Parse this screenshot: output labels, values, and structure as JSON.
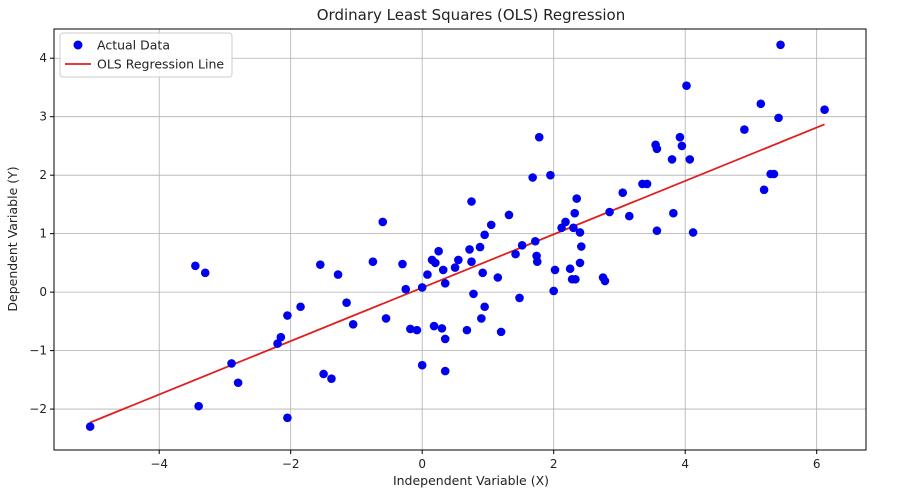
{
  "chart_data": {
    "type": "scatter",
    "title": "Ordinary Least Squares (OLS) Regression",
    "xlabel": "Independent Variable (X)",
    "ylabel": "Dependent Variable (Y)",
    "xlim": [
      -5.6,
      6.75
    ],
    "ylim": [
      -2.7,
      4.5
    ],
    "xticks": [
      -4,
      -2,
      0,
      2,
      4,
      6
    ],
    "yticks": [
      -2,
      -1,
      0,
      1,
      2,
      3,
      4
    ],
    "grid": true,
    "legend_position": "top-left",
    "colors": {
      "points": "#0000ee",
      "line": "#e02020",
      "grid": "#b0b0b0",
      "axes": "#000000"
    },
    "series": [
      {
        "name": "Actual Data",
        "kind": "scatter",
        "points": [
          [
            -5.05,
            -2.3
          ],
          [
            -3.45,
            0.45
          ],
          [
            -3.3,
            0.33
          ],
          [
            -3.4,
            -1.95
          ],
          [
            -2.9,
            -1.22
          ],
          [
            -2.8,
            -1.55
          ],
          [
            -2.2,
            -0.88
          ],
          [
            -2.15,
            -0.77
          ],
          [
            -2.05,
            -0.4
          ],
          [
            -2.05,
            -2.15
          ],
          [
            -1.85,
            -0.25
          ],
          [
            -1.55,
            0.47
          ],
          [
            -1.5,
            -1.4
          ],
          [
            -1.38,
            -1.48
          ],
          [
            -1.28,
            0.3
          ],
          [
            -1.15,
            -0.18
          ],
          [
            -1.05,
            -0.55
          ],
          [
            -0.75,
            0.52
          ],
          [
            -0.6,
            1.2
          ],
          [
            -0.55,
            -0.45
          ],
          [
            -0.3,
            0.48
          ],
          [
            -0.25,
            0.05
          ],
          [
            -0.18,
            -0.63
          ],
          [
            -0.08,
            -0.65
          ],
          [
            0.0,
            -1.25
          ],
          [
            0.0,
            0.08
          ],
          [
            0.08,
            0.3
          ],
          [
            0.15,
            0.55
          ],
          [
            0.18,
            -0.58
          ],
          [
            0.2,
            0.5
          ],
          [
            0.25,
            0.7
          ],
          [
            0.3,
            -0.62
          ],
          [
            0.32,
            0.38
          ],
          [
            0.35,
            0.15
          ],
          [
            0.35,
            -0.8
          ],
          [
            0.35,
            -1.35
          ],
          [
            0.5,
            0.42
          ],
          [
            0.55,
            0.55
          ],
          [
            0.68,
            -0.65
          ],
          [
            0.72,
            0.73
          ],
          [
            0.75,
            0.52
          ],
          [
            0.75,
            1.55
          ],
          [
            0.78,
            -0.03
          ],
          [
            0.88,
            0.77
          ],
          [
            0.9,
            -0.45
          ],
          [
            0.92,
            0.33
          ],
          [
            0.95,
            0.98
          ],
          [
            0.95,
            -0.25
          ],
          [
            1.05,
            1.15
          ],
          [
            1.15,
            0.25
          ],
          [
            1.2,
            -0.68
          ],
          [
            1.32,
            1.32
          ],
          [
            1.42,
            0.65
          ],
          [
            1.48,
            -0.1
          ],
          [
            1.52,
            0.8
          ],
          [
            1.68,
            1.96
          ],
          [
            1.72,
            0.87
          ],
          [
            1.74,
            0.62
          ],
          [
            1.75,
            0.52
          ],
          [
            1.78,
            2.65
          ],
          [
            1.95,
            2.0
          ],
          [
            2.0,
            0.02
          ],
          [
            2.02,
            0.38
          ],
          [
            2.12,
            1.1
          ],
          [
            2.18,
            1.2
          ],
          [
            2.25,
            0.4
          ],
          [
            2.28,
            0.22
          ],
          [
            2.3,
            1.1
          ],
          [
            2.32,
            1.35
          ],
          [
            2.33,
            0.22
          ],
          [
            2.35,
            1.6
          ],
          [
            2.4,
            1.02
          ],
          [
            2.4,
            0.5
          ],
          [
            2.42,
            0.78
          ],
          [
            2.75,
            0.25
          ],
          [
            2.78,
            0.19
          ],
          [
            2.85,
            1.37
          ],
          [
            3.05,
            1.7
          ],
          [
            3.15,
            1.3
          ],
          [
            3.35,
            1.85
          ],
          [
            3.42,
            1.85
          ],
          [
            3.55,
            2.52
          ],
          [
            3.57,
            2.45
          ],
          [
            3.57,
            1.05
          ],
          [
            3.8,
            2.27
          ],
          [
            3.82,
            1.35
          ],
          [
            3.92,
            2.65
          ],
          [
            3.95,
            2.5
          ],
          [
            4.02,
            3.53
          ],
          [
            4.07,
            2.27
          ],
          [
            4.12,
            1.02
          ],
          [
            4.9,
            2.78
          ],
          [
            5.15,
            3.22
          ],
          [
            5.2,
            1.75
          ],
          [
            5.3,
            2.02
          ],
          [
            5.35,
            2.02
          ],
          [
            5.42,
            2.98
          ],
          [
            5.45,
            4.23
          ],
          [
            6.12,
            3.12
          ]
        ]
      },
      {
        "name": "OLS Regression Line",
        "kind": "line",
        "points": [
          [
            -5.05,
            -2.23
          ],
          [
            6.12,
            2.87
          ]
        ]
      }
    ]
  }
}
